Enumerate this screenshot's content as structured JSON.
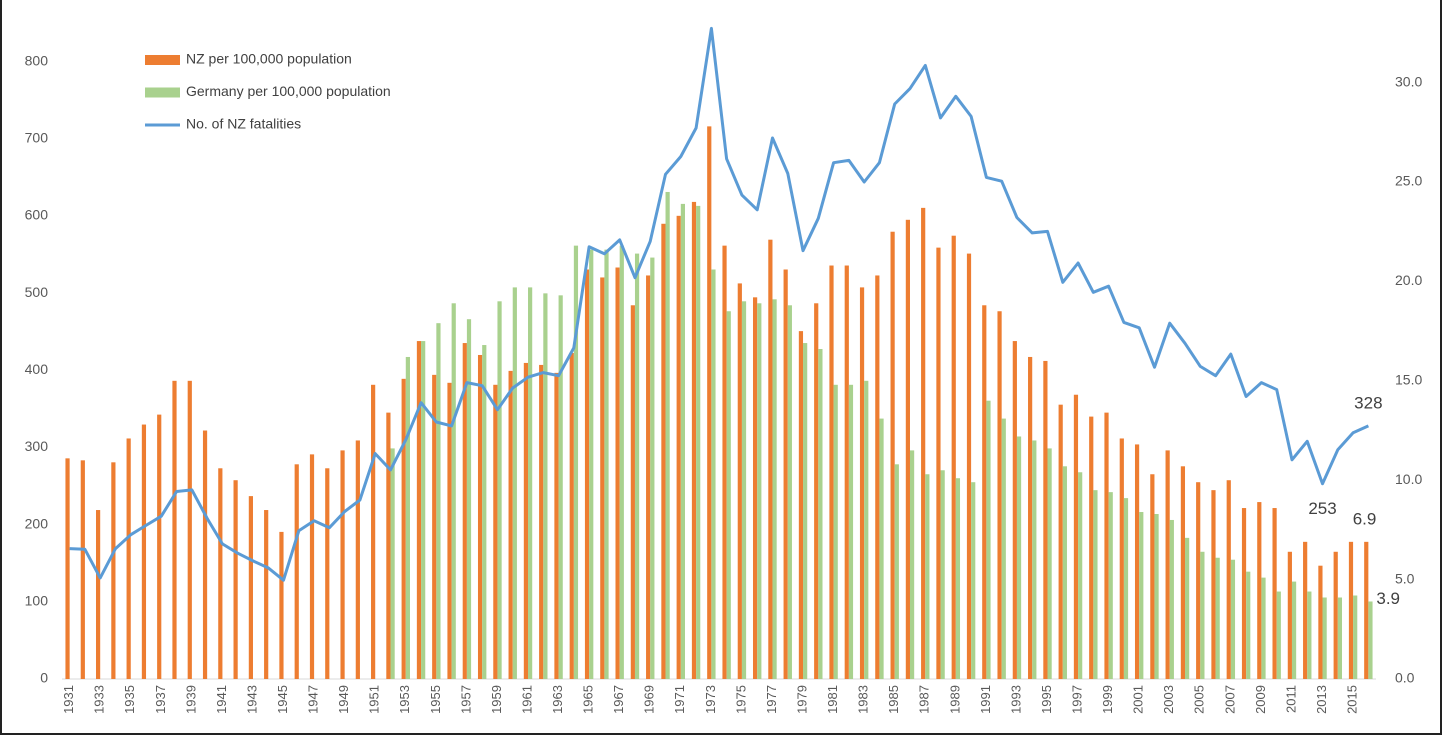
{
  "chart_data": {
    "type": "bar",
    "categories": [
      "1931",
      null,
      "1933",
      null,
      "1935",
      null,
      "1937",
      null,
      "1939",
      null,
      "1941",
      null,
      "1943",
      null,
      "1945",
      null,
      "1947",
      null,
      "1949",
      null,
      "1951",
      null,
      "1953",
      null,
      "1955",
      null,
      "1957",
      null,
      "1959",
      null,
      "1961",
      null,
      "1963",
      null,
      "1965",
      null,
      "1967",
      null,
      "1969",
      null,
      "1971",
      null,
      "1973",
      null,
      "1975",
      null,
      "1977",
      null,
      "1979",
      null,
      "1981",
      null,
      "1983",
      null,
      "1985",
      null,
      "1987",
      null,
      "1989",
      null,
      "1991",
      null,
      "1993",
      null,
      "1995",
      null,
      "1997",
      null,
      "1999",
      null,
      "2001",
      null,
      "2003",
      null,
      "2005",
      null,
      "2007",
      null,
      "2009",
      null,
      "2011",
      null,
      "2013",
      null,
      "2015",
      null
    ],
    "series": [
      {
        "name": "NZ per 100,000 population",
        "color": "#ED7D31",
        "axis": "y2",
        "values": [
          11.1,
          11.0,
          8.5,
          10.9,
          12.1,
          12.8,
          13.3,
          15.0,
          15.0,
          12.5,
          10.6,
          10.0,
          9.2,
          8.5,
          7.4,
          10.8,
          11.3,
          10.6,
          11.5,
          12.0,
          14.8,
          13.4,
          15.1,
          17.0,
          15.3,
          14.9,
          16.9,
          16.3,
          14.8,
          15.5,
          15.9,
          15.8,
          15.4,
          16.4,
          20.6,
          20.2,
          20.7,
          18.8,
          20.3,
          22.9,
          23.3,
          24.0,
          27.8,
          21.8,
          19.9,
          19.2,
          22.1,
          20.6,
          17.5,
          18.9,
          20.8,
          20.8,
          19.7,
          20.3,
          22.5,
          23.1,
          23.7,
          21.7,
          22.3,
          21.4,
          18.8,
          18.5,
          17.0,
          16.2,
          16.0,
          13.8,
          14.3,
          13.2,
          13.4,
          12.1,
          11.8,
          10.3,
          11.5,
          10.7,
          9.9,
          9.5,
          10.0,
          8.6,
          8.9,
          8.6,
          6.4,
          6.9,
          5.7,
          6.4,
          6.9,
          6.9
        ],
        "value_labels": [
          null,
          null,
          null,
          null,
          null,
          null,
          null,
          null,
          null,
          null,
          null,
          null,
          null,
          null,
          null,
          null,
          null,
          null,
          null,
          null,
          null,
          null,
          null,
          null,
          null,
          null,
          null,
          null,
          null,
          null,
          null,
          null,
          null,
          null,
          null,
          null,
          null,
          null,
          null,
          null,
          null,
          null,
          null,
          null,
          null,
          null,
          null,
          null,
          null,
          null,
          null,
          null,
          null,
          null,
          null,
          null,
          null,
          null,
          null,
          null,
          null,
          null,
          null,
          null,
          null,
          null,
          null,
          null,
          null,
          null,
          null,
          null,
          null,
          null,
          null,
          null,
          null,
          null,
          null,
          null,
          null,
          null,
          null,
          null,
          null,
          "6.9"
        ]
      },
      {
        "name": "Germany per 100,000 population",
        "color": "#A9D18E",
        "axis": "y2",
        "values": [
          null,
          null,
          null,
          null,
          null,
          null,
          null,
          null,
          null,
          null,
          null,
          null,
          null,
          null,
          null,
          null,
          null,
          null,
          null,
          null,
          null,
          11.6,
          16.2,
          17.0,
          17.9,
          18.9,
          18.1,
          16.8,
          19.0,
          19.7,
          19.7,
          19.4,
          19.3,
          21.8,
          21.6,
          21.6,
          21.8,
          21.4,
          21.2,
          24.5,
          23.9,
          23.8,
          20.6,
          18.5,
          19.0,
          18.9,
          19.1,
          18.8,
          16.9,
          16.6,
          14.8,
          14.8,
          15.0,
          13.1,
          10.8,
          11.5,
          10.3,
          10.5,
          10.1,
          9.9,
          14.0,
          13.1,
          12.2,
          12.0,
          11.6,
          10.7,
          10.4,
          9.5,
          9.4,
          9.1,
          8.4,
          8.3,
          8.0,
          7.1,
          6.4,
          6.1,
          6.0,
          5.4,
          5.1,
          4.4,
          4.9,
          4.4,
          4.1,
          4.1,
          4.2,
          3.9
        ],
        "value_labels": [
          null,
          null,
          null,
          null,
          null,
          null,
          null,
          null,
          null,
          null,
          null,
          null,
          null,
          null,
          null,
          null,
          null,
          null,
          null,
          null,
          null,
          null,
          null,
          null,
          null,
          null,
          null,
          null,
          null,
          null,
          null,
          null,
          null,
          null,
          null,
          null,
          null,
          null,
          null,
          null,
          null,
          null,
          null,
          null,
          null,
          null,
          null,
          null,
          null,
          null,
          null,
          null,
          null,
          null,
          null,
          null,
          null,
          null,
          null,
          null,
          null,
          null,
          null,
          null,
          null,
          null,
          null,
          null,
          null,
          null,
          null,
          null,
          null,
          null,
          null,
          null,
          null,
          null,
          null,
          null,
          null,
          null,
          null,
          null,
          null,
          "3.9"
        ]
      },
      {
        "name": "No. of NZ fatalities",
        "color": "#5B9BD5",
        "type": "line",
        "values": [
          169,
          168,
          131,
          169,
          187,
          199,
          211,
          243,
          245,
          208,
          175,
          163,
          153,
          144,
          128,
          192,
          205,
          196,
          217,
          232,
          292,
          271,
          310,
          358,
          333,
          328,
          384,
          380,
          349,
          377,
          391,
          397,
          393,
          429,
          560,
          551,
          569,
          520,
          567,
          654,
          677,
          714,
          843,
          674,
          627,
          608,
          701,
          655,
          555,
          597,
          669,
          672,
          644,
          669,
          745,
          765,
          795,
          727,
          755,
          729,
          650,
          645,
          598,
          578,
          580,
          514,
          539,
          501,
          509,
          462,
          455,
          404,
          461,
          435,
          405,
          393,
          421,
          366,
          384,
          375,
          284,
          308,
          253,
          297,
          319,
          328
        ],
        "value_labels": [
          null,
          null,
          null,
          null,
          null,
          null,
          null,
          null,
          null,
          null,
          null,
          null,
          null,
          null,
          null,
          null,
          null,
          null,
          null,
          null,
          null,
          null,
          null,
          null,
          null,
          null,
          null,
          null,
          null,
          null,
          null,
          null,
          null,
          null,
          null,
          null,
          null,
          null,
          null,
          null,
          null,
          null,
          null,
          null,
          null,
          null,
          null,
          null,
          null,
          null,
          null,
          null,
          null,
          null,
          null,
          null,
          null,
          null,
          null,
          null,
          null,
          null,
          null,
          null,
          null,
          null,
          null,
          null,
          null,
          null,
          null,
          null,
          null,
          null,
          null,
          null,
          null,
          null,
          null,
          null,
          null,
          null,
          "253",
          null,
          null,
          "328"
        ]
      }
    ],
    "ylim": [
      0,
      850
    ],
    "yticks": [
      0,
      100,
      200,
      300,
      400,
      500,
      600,
      700,
      800
    ],
    "y2lim": [
      0,
      33
    ],
    "y2ticks": [
      {
        "value": 0,
        "label": "0.0"
      },
      {
        "value": 5,
        "label": "5.0"
      },
      {
        "value": 10,
        "label": "10.0"
      },
      {
        "value": 15,
        "label": "15.0"
      },
      {
        "value": 20,
        "label": "20.0"
      },
      {
        "value": 25,
        "label": "25.0"
      },
      {
        "value": 30,
        "label": "30.0"
      }
    ],
    "grid": false
  }
}
